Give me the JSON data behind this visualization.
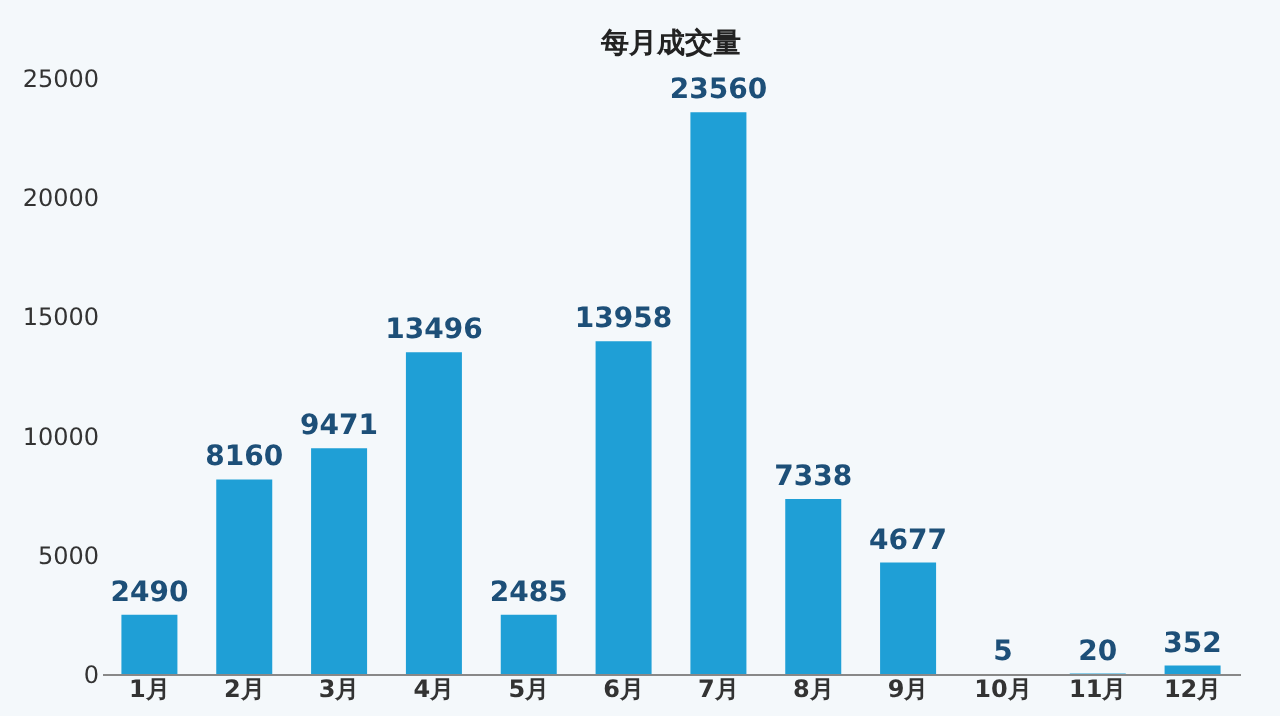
{
  "chart_data": {
    "type": "bar",
    "title": "每月成交量",
    "categories": [
      "1月",
      "2月",
      "3月",
      "4月",
      "5月",
      "6月",
      "7月",
      "8月",
      "9月",
      "10月",
      "11月",
      "12月"
    ],
    "values": [
      2490,
      8160,
      9471,
      13496,
      2485,
      13958,
      23560,
      7338,
      4677,
      5,
      20,
      352
    ],
    "color": "#1f9fd6",
    "ylim": [
      0,
      25000
    ],
    "yticks": [
      0,
      5000,
      10000,
      15000,
      20000,
      25000
    ],
    "grid": false,
    "data_labels": true
  }
}
